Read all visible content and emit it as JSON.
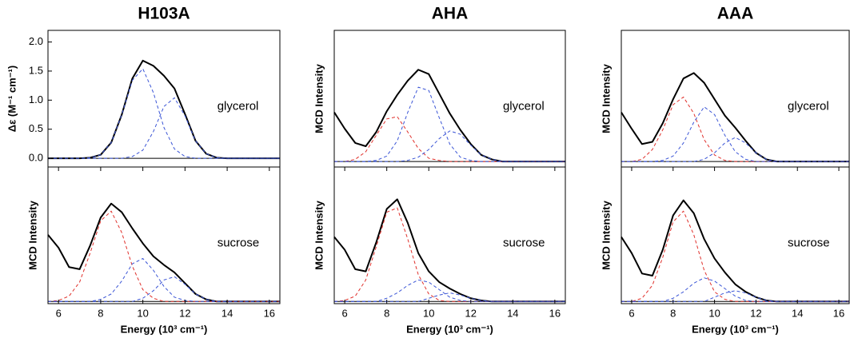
{
  "chart_data": [
    {
      "type": "line",
      "title": "H103A",
      "annotation": "glycerol",
      "y_label": "Δε (M⁻¹ cm⁻¹)",
      "x": [
        5.5,
        6,
        6.5,
        7,
        7.5,
        8,
        8.5,
        9,
        9.5,
        10,
        10.5,
        11,
        11.5,
        12,
        12.5,
        13,
        13.5,
        14,
        14.5,
        15,
        15.5,
        16,
        16.5
      ],
      "xlim": [
        5.5,
        16.5
      ],
      "ylim": [
        -0.15,
        2.2
      ],
      "yticks": [
        {
          "value": 0,
          "label": "0.0"
        },
        {
          "value": 0.5,
          "label": "0.5"
        },
        {
          "value": 1,
          "label": "1.0"
        },
        {
          "value": 1.5,
          "label": "1.5"
        },
        {
          "value": 2,
          "label": "2.0"
        }
      ],
      "series": [
        {
          "color": "#000000",
          "dashed": false,
          "values": [
            0,
            0,
            0,
            0,
            0.01,
            0.06,
            0.27,
            0.75,
            1.37,
            1.68,
            1.59,
            1.42,
            1.2,
            0.76,
            0.3,
            0.08,
            0.01,
            0,
            0,
            0,
            0,
            0,
            0
          ]
        },
        {
          "color": "#3b55d6",
          "dashed": true,
          "values": [
            0,
            0,
            0,
            0,
            0.01,
            0.06,
            0.27,
            0.75,
            1.34,
            1.54,
            1.13,
            0.53,
            0.16,
            0.03,
            0,
            0,
            0,
            0,
            0,
            0,
            0,
            0,
            0
          ]
        },
        {
          "color": "#3b55d6",
          "dashed": true,
          "values": [
            0,
            0,
            0,
            0,
            0,
            0,
            0,
            0,
            0.03,
            0.14,
            0.46,
            0.89,
            1.04,
            0.73,
            0.3,
            0.08,
            0.01,
            0,
            0,
            0,
            0,
            0,
            0
          ]
        }
      ]
    },
    {
      "type": "line",
      "title": "AHA",
      "annotation": "glycerol",
      "y_label": "MCD Intensity",
      "x": [
        5.5,
        6,
        6.5,
        7,
        7.5,
        8,
        8.5,
        9,
        9.5,
        10,
        10.5,
        11,
        11.5,
        12,
        12.5,
        13,
        13.5,
        14,
        14.5,
        15,
        15.5,
        16,
        16.5
      ],
      "xlim": [
        5.5,
        16.5
      ],
      "ylim": [
        -0.05,
        1.2
      ],
      "series": [
        {
          "color": "#000000",
          "dashed": false,
          "values": [
            0.45,
            0.3,
            0.17,
            0.14,
            0.27,
            0.46,
            0.61,
            0.74,
            0.84,
            0.8,
            0.62,
            0.44,
            0.29,
            0.16,
            0.06,
            0.02,
            0,
            0,
            0,
            0,
            0,
            0,
            0
          ]
        },
        {
          "color": "#e0302b",
          "dashed": true,
          "values": [
            0,
            0,
            0.02,
            0.09,
            0.24,
            0.39,
            0.41,
            0.27,
            0.12,
            0.03,
            0.01,
            0,
            0,
            0,
            0,
            0,
            0,
            0,
            0,
            0,
            0,
            0,
            0
          ]
        },
        {
          "color": "#3b55d6",
          "dashed": true,
          "values": [
            0,
            0,
            0,
            0,
            0.01,
            0.05,
            0.19,
            0.45,
            0.68,
            0.65,
            0.4,
            0.16,
            0.04,
            0.01,
            0,
            0,
            0,
            0,
            0,
            0,
            0,
            0,
            0
          ]
        },
        {
          "color": "#3b55d6",
          "dashed": true,
          "values": [
            0,
            0,
            0,
            0,
            0,
            0,
            0,
            0.01,
            0.04,
            0.11,
            0.21,
            0.28,
            0.25,
            0.15,
            0.06,
            0.02,
            0,
            0,
            0,
            0,
            0,
            0,
            0
          ]
        }
      ]
    },
    {
      "type": "line",
      "title": "AAA",
      "annotation": "glycerol",
      "y_label": "MCD Intensity",
      "x": [
        5.5,
        6,
        6.5,
        7,
        7.5,
        8,
        8.5,
        9,
        9.5,
        10,
        10.5,
        11,
        11.5,
        12,
        12.5,
        13,
        13.5,
        14,
        14.5,
        15,
        15.5,
        16,
        16.5
      ],
      "xlim": [
        5.5,
        16.5
      ],
      "ylim": [
        -0.05,
        1.2
      ],
      "series": [
        {
          "color": "#000000",
          "dashed": false,
          "values": [
            0.45,
            0.3,
            0.16,
            0.18,
            0.35,
            0.57,
            0.76,
            0.81,
            0.72,
            0.57,
            0.42,
            0.31,
            0.19,
            0.08,
            0.02,
            0,
            0,
            0,
            0,
            0,
            0,
            0,
            0
          ]
        },
        {
          "color": "#e0302b",
          "dashed": true,
          "values": [
            0,
            0,
            0.02,
            0.11,
            0.29,
            0.52,
            0.59,
            0.44,
            0.2,
            0.06,
            0.01,
            0,
            0,
            0,
            0,
            0,
            0,
            0,
            0,
            0,
            0,
            0,
            0
          ]
        },
        {
          "color": "#3b55d6",
          "dashed": true,
          "values": [
            0,
            0,
            0,
            0,
            0.01,
            0.05,
            0.17,
            0.36,
            0.5,
            0.43,
            0.24,
            0.09,
            0.02,
            0,
            0,
            0,
            0,
            0,
            0,
            0,
            0,
            0,
            0
          ]
        },
        {
          "color": "#3b55d6",
          "dashed": true,
          "values": [
            0,
            0,
            0,
            0,
            0,
            0,
            0,
            0,
            0.02,
            0.08,
            0.17,
            0.22,
            0.17,
            0.08,
            0.02,
            0,
            0,
            0,
            0,
            0,
            0,
            0,
            0
          ]
        }
      ]
    },
    {
      "type": "line",
      "annotation": "sucrose",
      "y_label": "MCD Intensity",
      "x_label": "Energy (10³ cm⁻¹)",
      "x": [
        5.5,
        6,
        6.5,
        7,
        7.5,
        8,
        8.5,
        9,
        9.5,
        10,
        10.5,
        11,
        11.5,
        12,
        12.5,
        13,
        13.5,
        14,
        14.5,
        15,
        15.5,
        16,
        16.5
      ],
      "xlim": [
        5.5,
        16.5
      ],
      "ylim": [
        -0.02,
        1.25
      ],
      "xticks": [
        6,
        8,
        10,
        12,
        14,
        16
      ],
      "series": [
        {
          "color": "#000000",
          "dashed": false,
          "values": [
            0.62,
            0.5,
            0.32,
            0.3,
            0.52,
            0.78,
            0.91,
            0.83,
            0.68,
            0.54,
            0.42,
            0.34,
            0.27,
            0.17,
            0.07,
            0.02,
            0,
            0,
            0,
            0,
            0,
            0,
            0
          ]
        },
        {
          "color": "#e0302b",
          "dashed": true,
          "values": [
            0,
            0.01,
            0.05,
            0.18,
            0.45,
            0.75,
            0.84,
            0.64,
            0.33,
            0.11,
            0.03,
            0,
            0,
            0,
            0,
            0,
            0,
            0,
            0,
            0,
            0,
            0,
            0
          ]
        },
        {
          "color": "#3b55d6",
          "dashed": true,
          "values": [
            0,
            0,
            0,
            0,
            0,
            0.02,
            0.07,
            0.19,
            0.35,
            0.4,
            0.29,
            0.14,
            0.04,
            0.01,
            0,
            0,
            0,
            0,
            0,
            0,
            0,
            0,
            0
          ]
        },
        {
          "color": "#3b55d6",
          "dashed": true,
          "values": [
            0,
            0,
            0,
            0,
            0,
            0,
            0,
            0,
            0,
            0.03,
            0.1,
            0.2,
            0.23,
            0.16,
            0.07,
            0.02,
            0,
            0,
            0,
            0,
            0,
            0,
            0
          ]
        }
      ]
    },
    {
      "type": "line",
      "annotation": "sucrose",
      "y_label": "MCD Intensity",
      "x_label": "Energy (10³ cm⁻¹)",
      "x": [
        5.5,
        6,
        6.5,
        7,
        7.5,
        8,
        8.5,
        9,
        9.5,
        10,
        10.5,
        11,
        11.5,
        12,
        12.5,
        13,
        13.5,
        14,
        14.5,
        15,
        15.5,
        16,
        16.5
      ],
      "xlim": [
        5.5,
        16.5
      ],
      "ylim": [
        -0.02,
        1.25
      ],
      "xticks": [
        6,
        8,
        10,
        12,
        14,
        16
      ],
      "series": [
        {
          "color": "#000000",
          "dashed": false,
          "values": [
            0.6,
            0.48,
            0.3,
            0.28,
            0.55,
            0.86,
            0.95,
            0.73,
            0.45,
            0.28,
            0.18,
            0.12,
            0.07,
            0.03,
            0.01,
            0,
            0,
            0,
            0,
            0,
            0,
            0,
            0
          ]
        },
        {
          "color": "#e0302b",
          "dashed": true,
          "values": [
            0,
            0.01,
            0.05,
            0.2,
            0.51,
            0.83,
            0.87,
            0.58,
            0.25,
            0.07,
            0.01,
            0,
            0,
            0,
            0,
            0,
            0,
            0,
            0,
            0,
            0,
            0,
            0
          ]
        },
        {
          "color": "#3b55d6",
          "dashed": true,
          "values": [
            0,
            0,
            0,
            0,
            0,
            0.03,
            0.08,
            0.15,
            0.2,
            0.18,
            0.11,
            0.04,
            0.01,
            0,
            0,
            0,
            0,
            0,
            0,
            0,
            0,
            0,
            0
          ]
        },
        {
          "color": "#3b55d6",
          "dashed": true,
          "values": [
            0,
            0,
            0,
            0,
            0,
            0,
            0,
            0,
            0,
            0.03,
            0.06,
            0.08,
            0.06,
            0.03,
            0.01,
            0,
            0,
            0,
            0,
            0,
            0,
            0,
            0
          ]
        }
      ]
    },
    {
      "type": "line",
      "annotation": "sucrose",
      "y_label": "MCD Intensity",
      "x_label": "Energy (10³ cm⁻¹)",
      "x": [
        5.5,
        6,
        6.5,
        7,
        7.5,
        8,
        8.5,
        9,
        9.5,
        10,
        10.5,
        11,
        11.5,
        12,
        12.5,
        13,
        13.5,
        14,
        14.5,
        15,
        15.5,
        16,
        16.5
      ],
      "xlim": [
        5.5,
        16.5
      ],
      "ylim": [
        -0.02,
        1.25
      ],
      "xticks": [
        6,
        8,
        10,
        12,
        14,
        16
      ],
      "series": [
        {
          "color": "#000000",
          "dashed": false,
          "values": [
            0.6,
            0.45,
            0.26,
            0.24,
            0.48,
            0.8,
            0.94,
            0.82,
            0.58,
            0.4,
            0.27,
            0.16,
            0.09,
            0.04,
            0.01,
            0,
            0,
            0,
            0,
            0,
            0,
            0,
            0
          ]
        },
        {
          "color": "#e0302b",
          "dashed": true,
          "values": [
            0,
            0,
            0.03,
            0.15,
            0.41,
            0.74,
            0.84,
            0.62,
            0.29,
            0.09,
            0.02,
            0,
            0,
            0,
            0,
            0,
            0,
            0,
            0,
            0,
            0,
            0,
            0
          ]
        },
        {
          "color": "#3b55d6",
          "dashed": true,
          "values": [
            0,
            0,
            0,
            0,
            0,
            0.03,
            0.09,
            0.17,
            0.22,
            0.19,
            0.12,
            0.05,
            0.01,
            0,
            0,
            0,
            0,
            0,
            0,
            0,
            0,
            0,
            0
          ]
        },
        {
          "color": "#3b55d6",
          "dashed": true,
          "values": [
            0,
            0,
            0,
            0,
            0,
            0,
            0,
            0,
            0,
            0.04,
            0.08,
            0.1,
            0.08,
            0.04,
            0.01,
            0,
            0,
            0,
            0,
            0,
            0,
            0,
            0
          ]
        }
      ]
    }
  ]
}
